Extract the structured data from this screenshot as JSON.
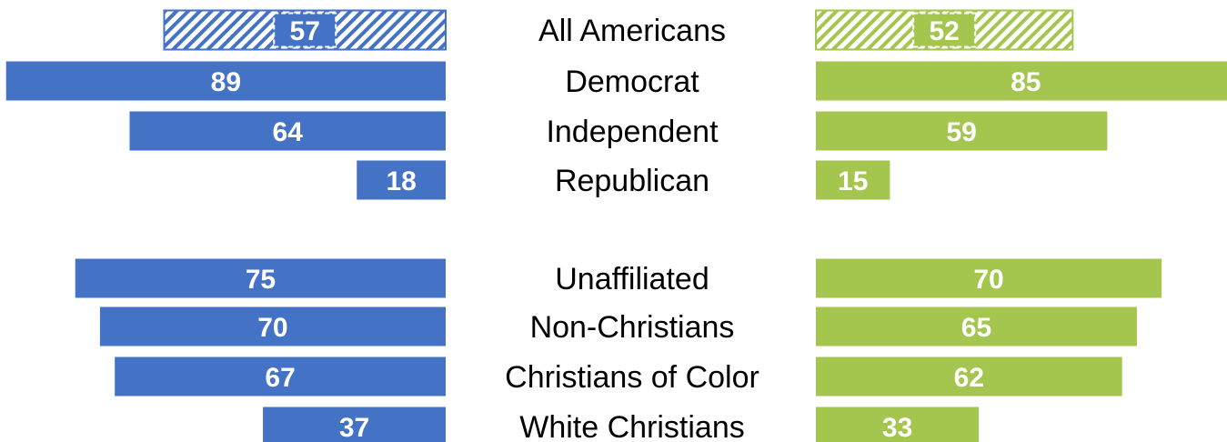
{
  "chart_data": {
    "type": "bar",
    "categories": [
      "All Americans",
      "Democrat",
      "Independent",
      "Republican",
      "Unaffiliated",
      "Non-Christians",
      "Christians of Color",
      "White Christians"
    ],
    "series": [
      {
        "values": [
          57,
          89,
          64,
          18,
          75,
          70,
          67,
          37
        ],
        "color": "#4472C4",
        "direction": "left"
      },
      {
        "values": [
          52,
          85,
          59,
          15,
          70,
          65,
          62,
          33
        ],
        "color": "#A5C64E",
        "direction": "right"
      }
    ],
    "hatched_category": "All Americans",
    "groups": [
      [
        "All Americans",
        "Democrat",
        "Independent",
        "Republican"
      ],
      [
        "Unaffiliated",
        "Non-Christians",
        "Christians of Color",
        "White Christians"
      ]
    ],
    "xlim": [
      0,
      100
    ],
    "legend": "none",
    "grid": false
  }
}
